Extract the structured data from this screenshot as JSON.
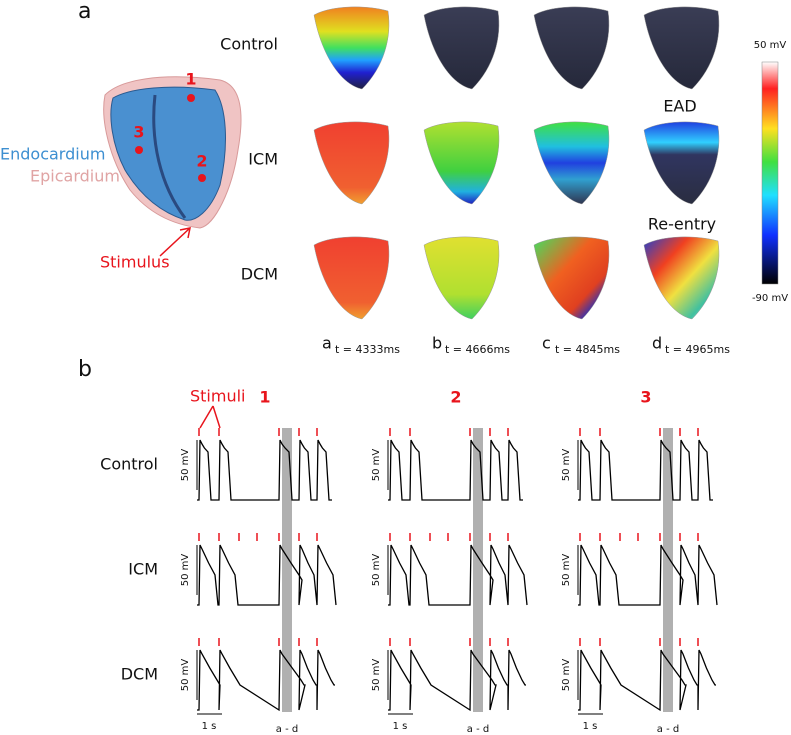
{
  "panel_a": {
    "label": "a",
    "heart_labels": {
      "site_1": "1",
      "site_2": "2",
      "site_3": "3",
      "endocardium": "Endocardium",
      "epicardium": "Epicardium",
      "stimulus": "Stimulus"
    },
    "rows": [
      "Control",
      "ICM",
      "DCM"
    ],
    "snapshots": [
      {
        "letter": "a",
        "time": "t = 4333ms"
      },
      {
        "letter": "b",
        "time": "t = 4666ms"
      },
      {
        "letter": "c",
        "time": "t = 4845ms"
      },
      {
        "letter": "d",
        "time": "t = 4965ms"
      }
    ],
    "annotations": {
      "ead": "EAD",
      "reentry": "Re-entry"
    },
    "colorbar": {
      "max": "50 mV",
      "min": "-90 mV"
    }
  },
  "panel_b": {
    "label": "b",
    "stimuli": "Stimuli",
    "columns": [
      "1",
      "2",
      "3"
    ],
    "rows": [
      "Control",
      "ICM",
      "DCM"
    ],
    "voltage_scale": "50 mV",
    "time_scale": "1 s",
    "window": "a - d"
  }
}
